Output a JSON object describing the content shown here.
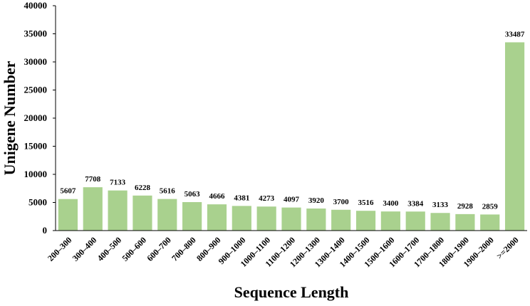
{
  "chart_data": {
    "type": "bar",
    "title": "",
    "xlabel": "Sequence Length",
    "ylabel": "Unigene Number",
    "ylim": [
      0,
      40000
    ],
    "yticks": [
      0,
      5000,
      10000,
      15000,
      20000,
      25000,
      30000,
      35000,
      40000
    ],
    "grid": false,
    "legend": "none",
    "bar_color": "#a9d18e",
    "categories": [
      "200–300",
      "300–400",
      "400–500",
      "500–600",
      "600–700",
      "700–800",
      "800–900",
      "900–1000",
      "1000–1100",
      "1100–1200",
      "1200–1300",
      "1300–1400",
      "1400–1500",
      "1500–1600",
      "1600–1700",
      "1700–1800",
      "1800–1900",
      "1900–2000",
      ">=2000"
    ],
    "values": [
      5607,
      7708,
      7133,
      6228,
      5616,
      5063,
      4666,
      4381,
      4273,
      4097,
      3920,
      3700,
      3516,
      3400,
      3384,
      3133,
      2928,
      2859,
      33487
    ]
  }
}
